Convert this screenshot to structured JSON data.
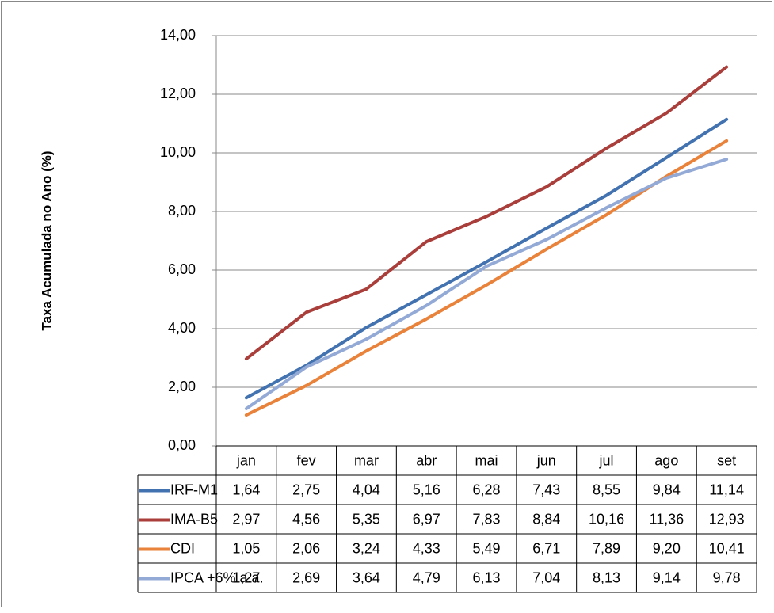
{
  "chart_data": {
    "type": "line",
    "y_label": "Taxa Acumulada no Ano (%)",
    "categories": [
      "jan",
      "fev",
      "mar",
      "abr",
      "mai",
      "jun",
      "jul",
      "ago",
      "set"
    ],
    "ylim": [
      0,
      14
    ],
    "yticks": [
      {
        "value": 0,
        "label": "0,00"
      },
      {
        "value": 2,
        "label": "2,00"
      },
      {
        "value": 4,
        "label": "4,00"
      },
      {
        "value": 6,
        "label": "6,00"
      },
      {
        "value": 8,
        "label": "8,00"
      },
      {
        "value": 10,
        "label": "10,00"
      },
      {
        "value": 12,
        "label": "12,00"
      },
      {
        "value": 14,
        "label": "14,00"
      }
    ],
    "grid": true,
    "series": [
      {
        "name": "IRF-M1",
        "color": "#4372b0",
        "values": [
          1.64,
          2.75,
          4.04,
          5.16,
          6.28,
          7.43,
          8.55,
          9.84,
          11.14
        ],
        "value_labels": [
          "1,64",
          "2,75",
          "4,04",
          "5,16",
          "6,28",
          "7,43",
          "8,55",
          "9,84",
          "11,14"
        ]
      },
      {
        "name": "IMA-B5",
        "color": "#a93e3b",
        "values": [
          2.97,
          4.56,
          5.35,
          6.97,
          7.83,
          8.84,
          10.16,
          11.36,
          12.93
        ],
        "value_labels": [
          "2,97",
          "4,56",
          "5,35",
          "6,97",
          "7,83",
          "8,84",
          "10,16",
          "11,36",
          "12,93"
        ]
      },
      {
        "name": "CDI",
        "color": "#e9823a",
        "values": [
          1.05,
          2.06,
          3.24,
          4.33,
          5.49,
          6.71,
          7.89,
          9.2,
          10.41
        ],
        "value_labels": [
          "1,05",
          "2,06",
          "3,24",
          "4,33",
          "5,49",
          "6,71",
          "7,89",
          "9,20",
          "10,41"
        ]
      },
      {
        "name": "IPCA +6% a.a.",
        "color": "#94aad6",
        "values": [
          1.27,
          2.69,
          3.64,
          4.79,
          6.13,
          7.04,
          8.13,
          9.14,
          9.78
        ],
        "value_labels": [
          "1,27",
          "2,69",
          "3,64",
          "4,79",
          "6,13",
          "7,04",
          "8,13",
          "9,14",
          "9,78"
        ]
      }
    ]
  }
}
